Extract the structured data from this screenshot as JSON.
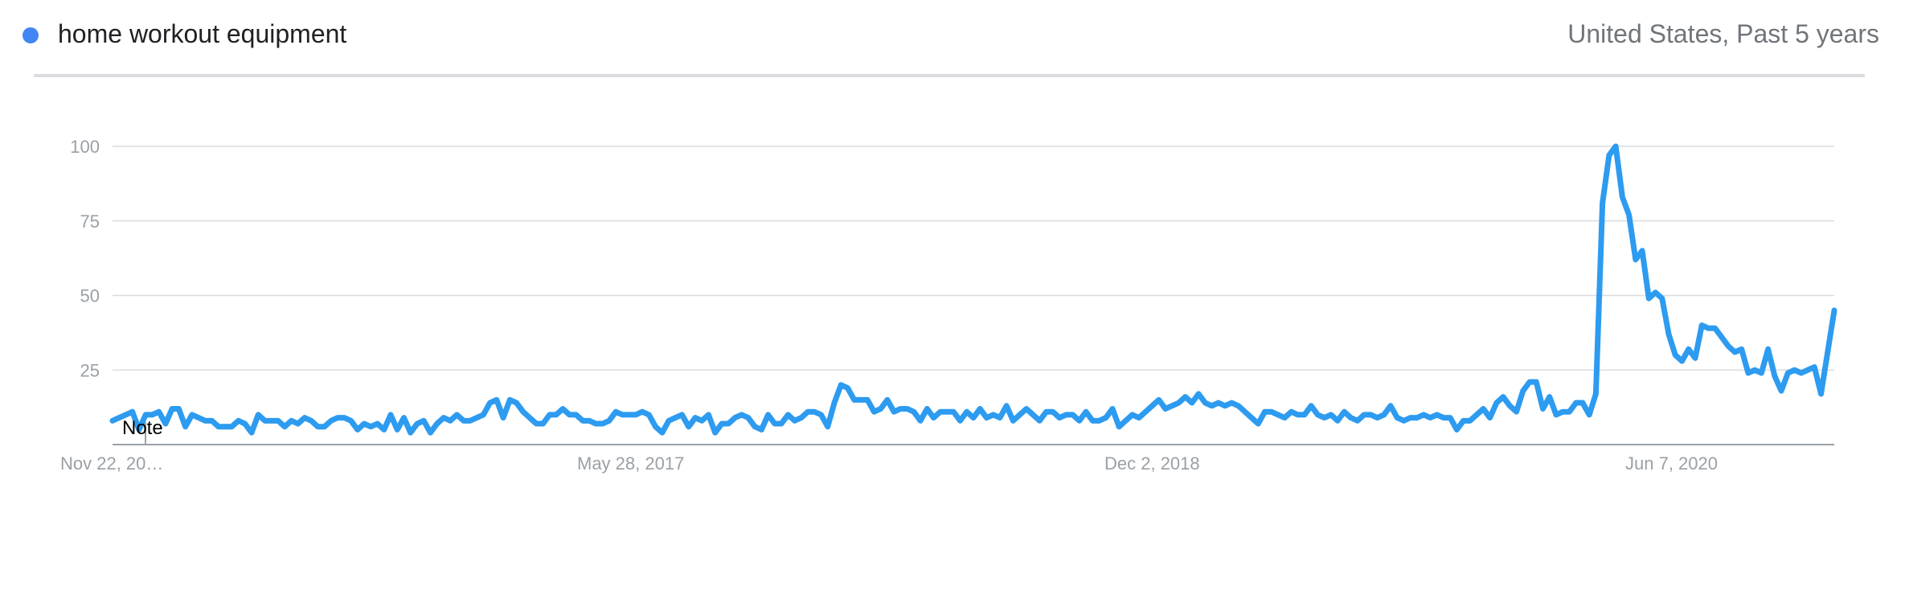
{
  "header": {
    "term": "home workout equipment",
    "scope": "United States, Past 5 years",
    "series_color": "#4285f4"
  },
  "chart_data": {
    "type": "line",
    "title": "",
    "xlabel": "",
    "ylabel": "",
    "ylim": [
      0,
      100
    ],
    "y_ticks": [
      25,
      50,
      75,
      100
    ],
    "grid": true,
    "x_tick_labels": [
      "Nov 22, 20…",
      "May 28, 2017",
      "Dec 2, 2018",
      "Jun 7, 2020"
    ],
    "line_color": "#2d9bf0",
    "annotation": "Note",
    "series": [
      {
        "values": [
          8,
          9,
          10,
          11,
          5,
          10,
          10,
          11,
          7,
          12,
          12,
          6,
          10,
          9,
          8,
          8,
          6,
          6,
          6,
          8,
          7,
          4,
          10,
          8,
          8,
          8,
          6,
          8,
          7,
          9,
          8,
          6,
          6,
          8,
          9,
          9,
          8,
          5,
          7,
          6,
          7,
          5,
          10,
          5,
          9,
          4,
          7,
          8,
          4,
          7,
          9,
          8,
          10,
          8,
          8,
          9,
          10,
          14,
          15,
          9,
          15,
          14,
          11,
          9,
          7,
          7,
          10,
          10,
          12,
          10,
          10,
          8,
          8,
          7,
          7,
          8,
          11,
          10,
          10,
          10,
          11,
          10,
          6,
          4,
          8,
          9,
          10,
          6,
          9,
          8,
          10,
          4,
          7,
          7,
          9,
          10,
          9,
          6,
          5,
          10,
          7,
          7,
          10,
          8,
          9,
          11,
          11,
          10,
          6,
          14,
          20,
          19,
          15,
          15,
          15,
          11,
          12,
          15,
          11,
          12,
          12,
          11,
          8,
          12,
          9,
          11,
          11,
          11,
          8,
          11,
          9,
          12,
          9,
          10,
          9,
          13,
          8,
          10,
          12,
          10,
          8,
          11,
          11,
          9,
          10,
          10,
          8,
          11,
          8,
          8,
          9,
          12,
          6,
          8,
          10,
          9,
          11,
          13,
          15,
          12,
          13,
          14,
          16,
          14,
          17,
          14,
          13,
          14,
          13,
          14,
          13,
          11,
          9,
          7,
          11,
          11,
          10,
          9,
          11,
          10,
          10,
          13,
          10,
          9,
          10,
          8,
          11,
          9,
          8,
          10,
          10,
          9,
          10,
          13,
          9,
          8,
          9,
          9,
          10,
          9,
          10,
          9,
          9,
          5,
          8,
          8,
          10,
          12,
          9,
          14,
          16,
          13,
          11,
          18,
          21,
          21,
          12,
          16,
          10,
          11,
          11,
          14,
          14,
          10,
          17,
          81,
          97,
          100,
          83,
          77,
          62,
          65,
          49,
          51,
          49,
          37,
          30,
          28,
          32,
          29,
          40,
          39,
          39,
          36,
          33,
          31,
          32,
          24,
          25,
          24,
          32,
          23,
          18,
          24,
          25,
          24,
          25,
          26,
          17,
          31,
          45
        ]
      }
    ]
  }
}
